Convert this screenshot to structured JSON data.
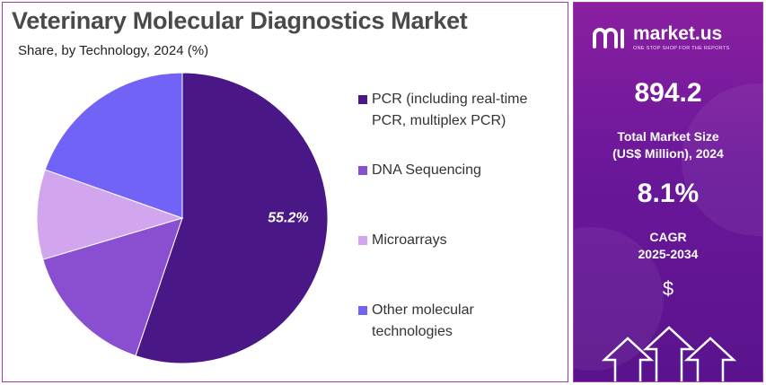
{
  "header": {
    "title": "Veterinary Molecular Diagnostics Market",
    "subtitle": "Share, by Technology, 2024 (%)"
  },
  "chart_data": {
    "type": "pie",
    "title": "Veterinary Molecular Diagnostics Market",
    "subtitle": "Share, by Technology, 2024 (%)",
    "slices": [
      {
        "label": "PCR (including real-time PCR, multiplex PCR)",
        "value": 55.2,
        "color": "#4a1787",
        "data_label": "55.2%"
      },
      {
        "label": "DNA Sequencing",
        "value": 15.2,
        "color": "#8a4fd0",
        "data_label": ""
      },
      {
        "label": "Microarrays",
        "value": 10.0,
        "color": "#d2a6ef",
        "data_label": ""
      },
      {
        "label": "Other molecular technologies",
        "value": 19.6,
        "color": "#7163f5",
        "data_label": ""
      }
    ],
    "legend_position": "right"
  },
  "legend": {
    "items": [
      {
        "line1": "PCR (including real-time",
        "line2": "PCR, multiplex PCR)",
        "color": "#4a1787"
      },
      {
        "line1": "DNA Sequencing",
        "line2": "",
        "color": "#8a4fd0"
      },
      {
        "line1": "Microarrays",
        "line2": "",
        "color": "#d2a6ef"
      },
      {
        "line1": "Other molecular",
        "line2": "technologies",
        "color": "#7163f5"
      }
    ]
  },
  "sidebar": {
    "brand_name": "market.us",
    "brand_tagline": "ONE STOP SHOP FOR THE REPORTS",
    "market_size_value": "894.2",
    "market_size_label_line1": "Total Market Size",
    "market_size_label_line2": "(US$ Million), 2024",
    "cagr_value": "8.1%",
    "cagr_label_line1": "CAGR",
    "cagr_label_line2": "2025-2034",
    "currency_symbol": "$"
  }
}
